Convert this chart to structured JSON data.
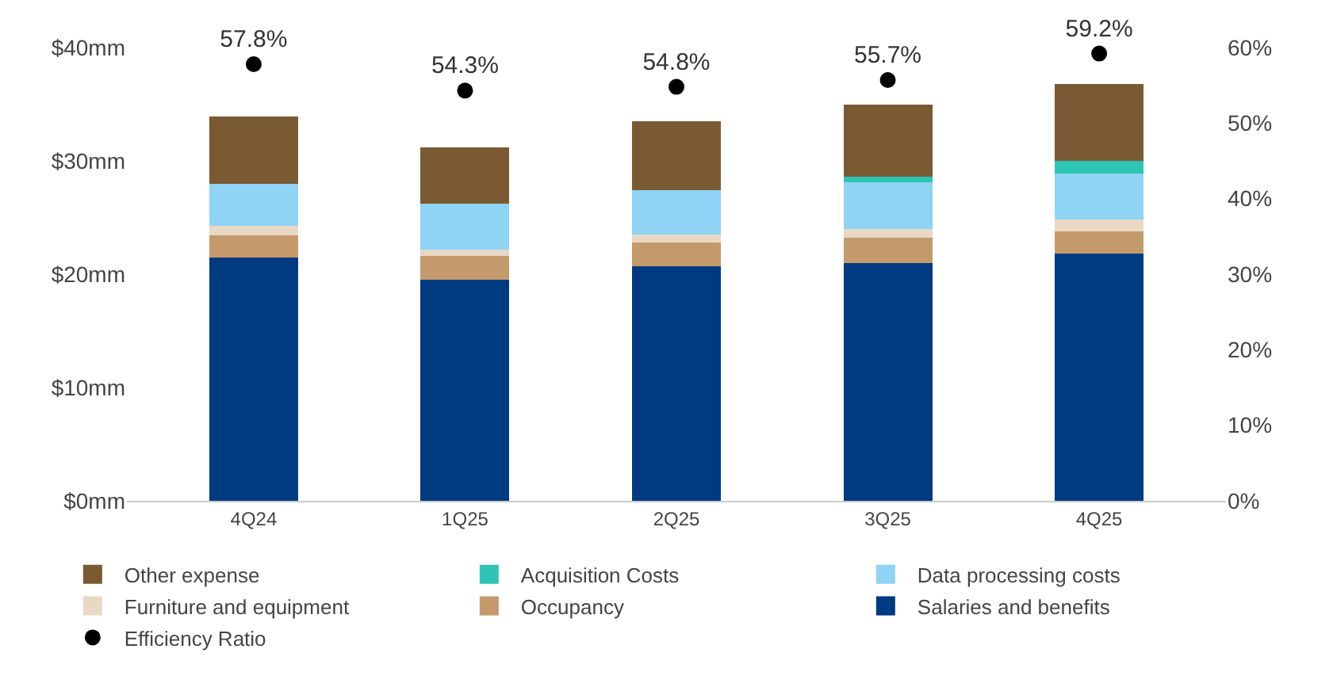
{
  "chart_data": {
    "type": "bar",
    "stacked": true,
    "categories": [
      "4Q24",
      "1Q25",
      "2Q25",
      "3Q25",
      "4Q25"
    ],
    "series": [
      {
        "name": "Salaries and benefits",
        "color": "#003a80",
        "values": [
          21.5,
          19.5,
          20.7,
          21.0,
          21.8
        ]
      },
      {
        "name": "Occupancy",
        "color": "#c49a6c",
        "values": [
          1.9,
          2.1,
          2.1,
          2.2,
          2.0
        ]
      },
      {
        "name": "Furniture and equipment",
        "color": "#e8d8c4",
        "values": [
          0.9,
          0.6,
          0.7,
          0.8,
          1.0
        ]
      },
      {
        "name": "Data processing costs",
        "color": "#8fd3f5",
        "values": [
          3.7,
          4.0,
          3.9,
          4.1,
          4.1
        ]
      },
      {
        "name": "Acquisition Costs",
        "color": "#2ec4b6",
        "values": [
          null,
          null,
          null,
          0.5,
          1.1
        ]
      },
      {
        "name": "Other expense",
        "color": "#7a5a32",
        "values": [
          5.9,
          5.0,
          6.1,
          6.4,
          6.8
        ]
      },
      {
        "name": "Efficiency Ratio",
        "color": "#000000",
        "type": "scatter",
        "axis": "y2",
        "marker": "circle",
        "values": [
          57.8,
          54.3,
          54.8,
          55.7,
          59.2
        ],
        "value_labels": [
          "57.8%",
          "54.3%",
          "54.8%",
          "55.7%",
          "59.2%"
        ]
      }
    ],
    "ylim": [
      0,
      40
    ],
    "yticks": [
      {
        "value": 0,
        "label": "$0mm"
      },
      {
        "value": 10,
        "label": "$10mm"
      },
      {
        "value": 20,
        "label": "$20mm"
      },
      {
        "value": 30,
        "label": "$30mm"
      },
      {
        "value": 40,
        "label": "$40mm"
      }
    ],
    "y2lim": [
      0,
      60
    ],
    "y2ticks": [
      {
        "value": 0,
        "label": "0%"
      },
      {
        "value": 10,
        "label": "10%"
      },
      {
        "value": 20,
        "label": "20%"
      },
      {
        "value": 30,
        "label": "30%"
      },
      {
        "value": 40,
        "label": "40%"
      },
      {
        "value": 50,
        "label": "50%"
      },
      {
        "value": 60,
        "label": "60%"
      }
    ],
    "legend": "bottom"
  }
}
